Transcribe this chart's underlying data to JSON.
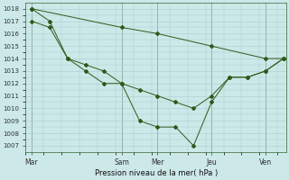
{
  "bg_color": "#cce8e8",
  "grid_color": "#aacccc",
  "line_color": "#2d5a1b",
  "title": "Pression niveau de la mer( hPa )",
  "ylim": [
    1006.5,
    1018.5
  ],
  "yticks": [
    1007,
    1008,
    1009,
    1010,
    1011,
    1012,
    1013,
    1014,
    1015,
    1016,
    1017,
    1018
  ],
  "day_labels": [
    "Mar",
    "Sam",
    "Mer",
    "Jeu",
    "Ven"
  ],
  "day_positions": [
    0,
    30,
    42,
    60,
    78
  ],
  "xlim": [
    -2,
    85
  ],
  "line_flat": {
    "x": [
      0,
      30,
      42,
      60,
      78,
      84
    ],
    "y": [
      1018,
      1016.5,
      1016,
      1015,
      1014,
      1014
    ]
  },
  "line_mid": {
    "x": [
      0,
      6,
      12,
      18,
      24,
      30,
      36,
      42,
      48,
      54,
      60,
      66,
      72,
      78,
      84
    ],
    "y": [
      1017,
      1016.5,
      1014,
      1013.5,
      1013,
      1012,
      1011.5,
      1011,
      1010.5,
      1010,
      1011,
      1012.5,
      1012.5,
      1013,
      1014
    ]
  },
  "line_deep": {
    "x": [
      0,
      6,
      12,
      18,
      24,
      30,
      36,
      42,
      48,
      54,
      60,
      66,
      72,
      78,
      84
    ],
    "y": [
      1018,
      1017,
      1014,
      1013,
      1012,
      1012,
      1009,
      1008.5,
      1008.5,
      1007,
      1010.5,
      1012.5,
      1012.5,
      1013,
      1014
    ]
  }
}
